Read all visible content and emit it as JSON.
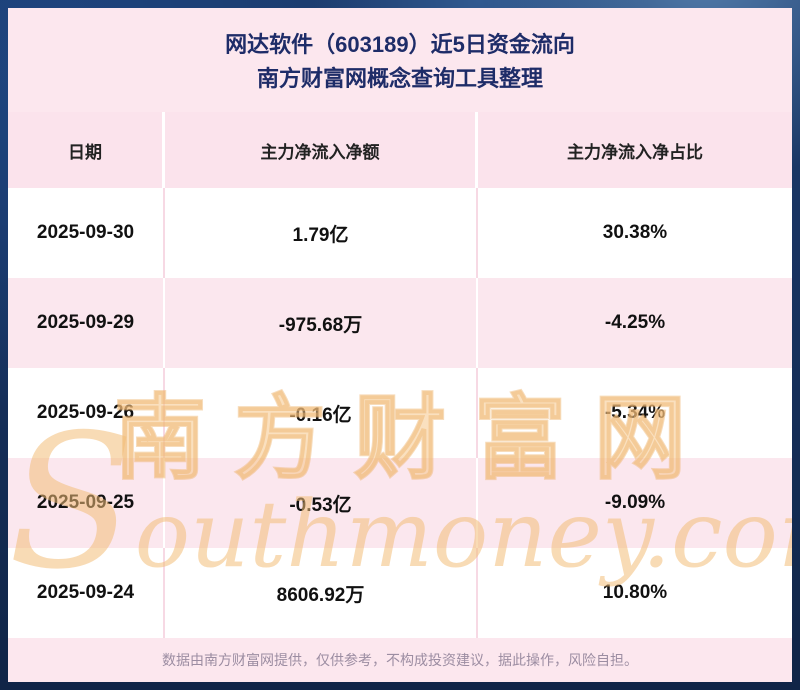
{
  "title": {
    "line1": "网达软件（603189）近5日资金流向",
    "line2": "南方财富网概念查询工具整理"
  },
  "table": {
    "headers": [
      "日期",
      "主力净流入净额",
      "主力净流入净占比"
    ],
    "rows": [
      {
        "date": "2025-09-30",
        "amount": "1.79亿",
        "ratio": "30.38%"
      },
      {
        "date": "2025-09-29",
        "amount": "-975.68万",
        "ratio": "-4.25%"
      },
      {
        "date": "2025-09-26",
        "amount": "-0.16亿",
        "ratio": "-5.34%"
      },
      {
        "date": "2025-09-25",
        "amount": "-0.53亿",
        "ratio": "-9.09%"
      },
      {
        "date": "2025-09-24",
        "amount": "8606.92万",
        "ratio": "10.80%"
      }
    ]
  },
  "chart_data": {
    "type": "table",
    "title": "网达软件（603189）近5日资金流向",
    "subtitle": "南方财富网概念查询工具整理",
    "columns": [
      "日期",
      "主力净流入净额",
      "主力净流入净占比"
    ],
    "rows": [
      [
        "2025-09-30",
        "1.79亿",
        "30.38%"
      ],
      [
        "2025-09-29",
        "-975.68万",
        "-4.25%"
      ],
      [
        "2025-09-26",
        "-0.16亿",
        "-5.34%"
      ],
      [
        "2025-09-25",
        "-0.53亿",
        "-9.09%"
      ],
      [
        "2025-09-24",
        "8606.92万",
        "10.80%"
      ]
    ]
  },
  "watermark": {
    "cn": "南方财富网",
    "en": "Southmoney.com"
  },
  "footer": "数据由南方财富网提供，仅供参考，不构成投资建议，据此操作，风险自担。",
  "colors": {
    "title_navy": "#1e2c68",
    "panel_pink": "#fce7ee",
    "header_pink": "#fbe3ec",
    "row_white": "#ffffff",
    "footer_gray": "#9c8da2",
    "watermark_tan": "#f3be78",
    "background_blue": "#16305c"
  }
}
